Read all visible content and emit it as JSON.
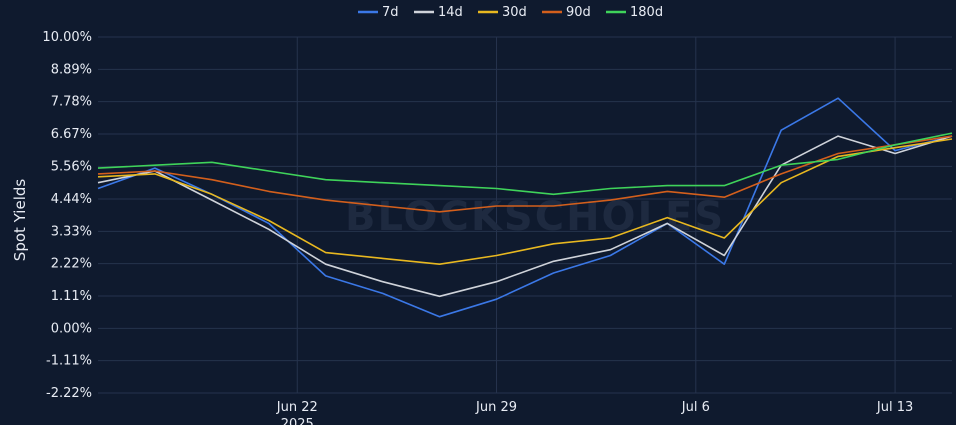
{
  "chart_data": {
    "type": "line",
    "ylabel": "Spot Yields",
    "watermark": "BLOCKSCHOLES",
    "y_ticks": [
      "10.00%",
      "8.89%",
      "7.78%",
      "6.67%",
      "5.56%",
      "4.44%",
      "3.33%",
      "2.22%",
      "1.11%",
      "0.00%",
      "-1.11%",
      "-2.22%"
    ],
    "ylim": [
      -2.22,
      10.0
    ],
    "x_ticks": [
      "Jun 22",
      "Jun 29",
      "Jul 6",
      "Jul 13"
    ],
    "x_subtick": "2025",
    "xlim": [
      "2025-06-15",
      "2025-07-15"
    ],
    "grid": true,
    "legend_position": "top-center",
    "x": [
      "2025-06-15",
      "2025-06-17",
      "2025-06-19",
      "2025-06-21",
      "2025-06-23",
      "2025-06-25",
      "2025-06-27",
      "2025-06-29",
      "2025-07-01",
      "2025-07-03",
      "2025-07-05",
      "2025-07-07",
      "2025-07-09",
      "2025-07-11",
      "2025-07-13",
      "2025-07-15"
    ],
    "series": [
      {
        "name": "7d",
        "color": "#3b78e7",
        "values": [
          4.8,
          5.5,
          4.6,
          3.6,
          1.8,
          1.2,
          0.4,
          1.0,
          1.9,
          2.5,
          3.6,
          2.2,
          6.8,
          7.9,
          6.1,
          6.6
        ]
      },
      {
        "name": "14d",
        "color": "#cfd3da",
        "values": [
          5.0,
          5.4,
          4.4,
          3.4,
          2.2,
          1.6,
          1.1,
          1.6,
          2.3,
          2.7,
          3.6,
          2.5,
          5.6,
          6.6,
          6.0,
          6.6
        ]
      },
      {
        "name": "30d",
        "color": "#e8b820",
        "values": [
          5.2,
          5.3,
          4.6,
          3.7,
          2.6,
          2.4,
          2.2,
          2.5,
          2.9,
          3.1,
          3.8,
          3.1,
          5.0,
          5.9,
          6.2,
          6.5
        ]
      },
      {
        "name": "90d",
        "color": "#d35f1c",
        "values": [
          5.3,
          5.4,
          5.1,
          4.7,
          4.4,
          4.2,
          4.0,
          4.2,
          4.2,
          4.4,
          4.7,
          4.5,
          5.3,
          6.0,
          6.3,
          6.6
        ]
      },
      {
        "name": "180d",
        "color": "#3fd35a",
        "values": [
          5.5,
          5.6,
          5.7,
          5.4,
          5.1,
          5.0,
          4.9,
          4.8,
          4.6,
          4.8,
          4.9,
          4.9,
          5.6,
          5.8,
          6.3,
          6.7
        ]
      }
    ]
  }
}
